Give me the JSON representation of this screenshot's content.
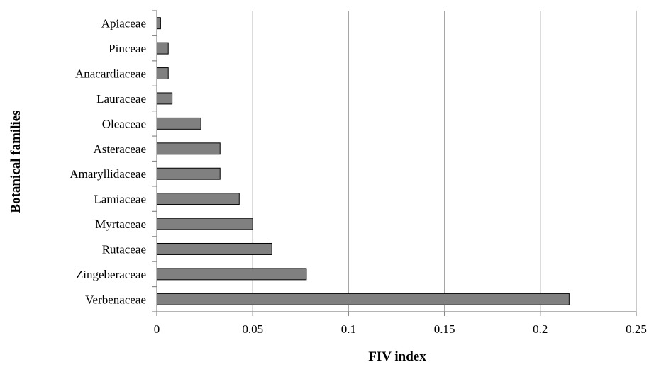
{
  "chart_data": {
    "type": "bar",
    "orientation": "horizontal",
    "title": "",
    "xlabel": "FIV index",
    "ylabel": "Botanical families",
    "categories": [
      "Verbenaceae",
      "Zingeberaceae",
      "Rutaceae",
      "Myrtaceae",
      "Lamiaceae",
      "Amaryllidaceae",
      "Asteraceae",
      "Oleaceae",
      "Lauraceae",
      "Anacardiaceae",
      "Pinceae",
      "Apiaceae"
    ],
    "values": [
      0.215,
      0.078,
      0.06,
      0.05,
      0.043,
      0.033,
      0.033,
      0.023,
      0.008,
      0.006,
      0.006,
      0.002
    ],
    "xlim": [
      0,
      0.25
    ],
    "xticks": [
      0,
      0.05,
      0.1,
      0.15,
      0.2,
      0.25
    ],
    "xtick_labels": [
      "0",
      "0.05",
      "0.1",
      "0.15",
      "0.2",
      "0.25"
    ],
    "grid": "vertical",
    "legend": "none",
    "colors": {
      "bar_fill": "#808080",
      "bar_stroke": "#000000",
      "grid": "#a6a6a6",
      "axis": "#888888"
    }
  }
}
